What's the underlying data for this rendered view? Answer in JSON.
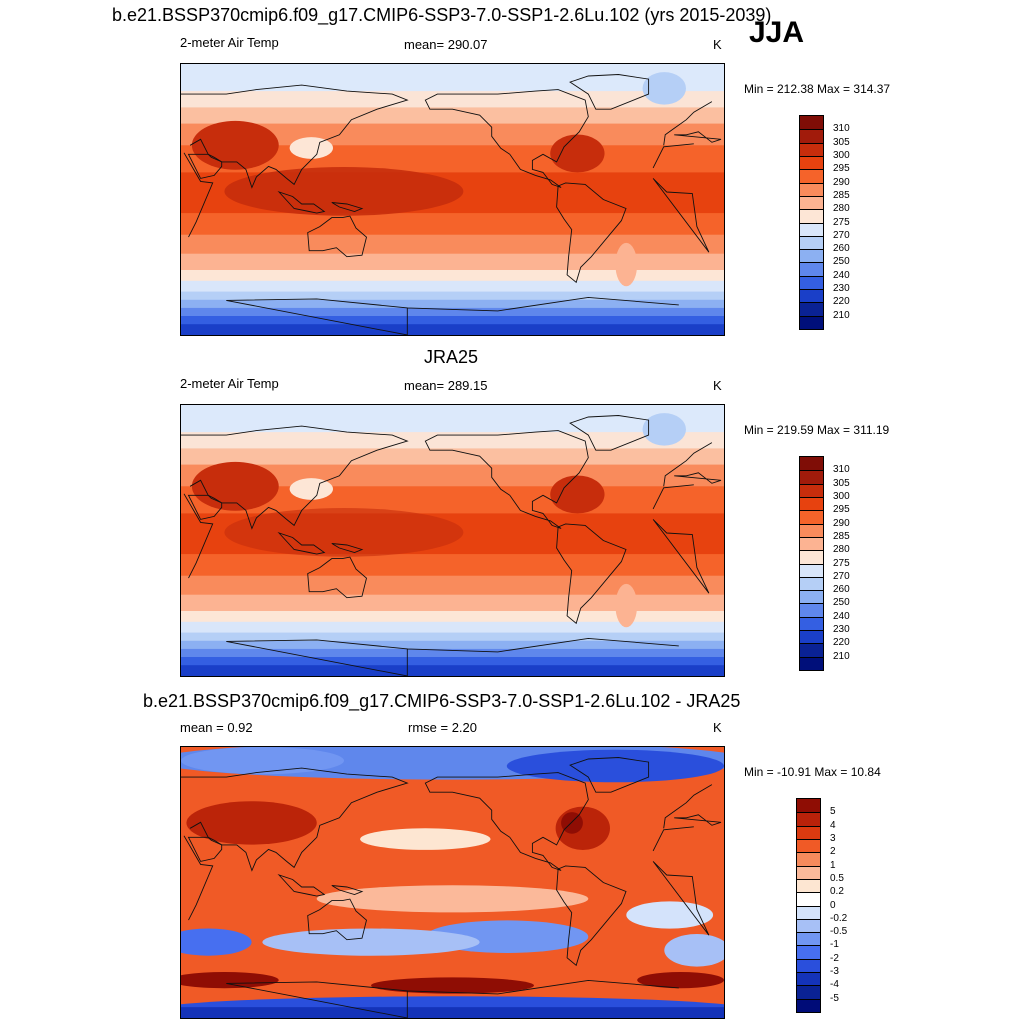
{
  "season": "JJA",
  "panels": [
    {
      "title": "b.e21.BSSP370cmip6.f09_g17.CMIP6-SSP3-7.0-SSP1-2.6Lu.102 (yrs 2015-2039)",
      "left": "2-meter Air Temp",
      "center": "mean= 290.07",
      "right": "K",
      "minmax": "Min = 212.38 Max = 314.37",
      "levels": [
        "310",
        "305",
        "300",
        "295",
        "290",
        "285",
        "280",
        "275",
        "270",
        "260",
        "250",
        "240",
        "230",
        "220",
        "210"
      ]
    },
    {
      "title": "JRA25",
      "left": "2-meter Air Temp",
      "center": "mean= 289.15",
      "right": "K",
      "minmax": "Min = 219.59 Max = 311.19",
      "levels": [
        "310",
        "305",
        "300",
        "295",
        "290",
        "285",
        "280",
        "275",
        "270",
        "260",
        "250",
        "240",
        "230",
        "220",
        "210"
      ]
    },
    {
      "title": "b.e21.BSSP370cmip6.f09_g17.CMIP6-SSP3-7.0-SSP1-2.6Lu.102 - JRA25",
      "left": "mean =   0.92",
      "center": "rmse =   2.20",
      "right": "K",
      "minmax": "Min = -10.91 Max =  10.84",
      "levels": [
        "5",
        "4",
        "3",
        "2",
        "1",
        "0.5",
        "0.2",
        "0",
        "-0.2",
        "-0.5",
        "-1",
        "-2",
        "-3",
        "-4",
        "-5"
      ]
    }
  ],
  "colors": {
    "abs_scale": [
      "#fde9d9",
      "#fdbf9f",
      "#fc9a6d",
      "#f8703f",
      "#f2501b",
      "#e33a10",
      "#c42a0c",
      "#9e1a0a",
      "#7f0d06",
      "#d8e7fa",
      "#b8d3f7",
      "#95b8f2",
      "#6f96ee",
      "#3f67e7",
      "#1f45d6",
      "#1031b4",
      "#0a2294",
      "#000f7a"
    ],
    "diff_scale": [
      "#000c78",
      "#0a2294",
      "#1433b9",
      "#2a4fdc",
      "#476ff0",
      "#7196f2",
      "#a7c0f6",
      "#d4e3fb",
      "#ffffff",
      "#fde6d2",
      "#fbb99a",
      "#f68a5c",
      "#f05a26",
      "#df3b10",
      "#bb2409",
      "#8f0d04"
    ]
  }
}
